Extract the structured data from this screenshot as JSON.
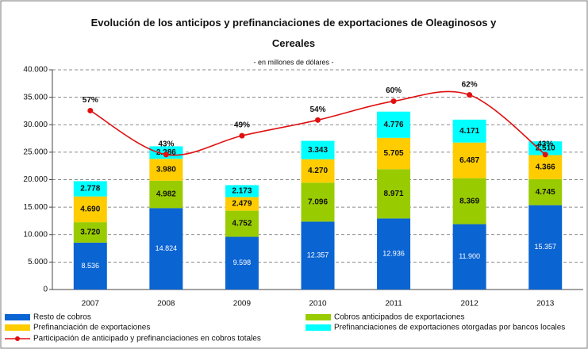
{
  "chart_data": {
    "type": "bar",
    "stacked": true,
    "title": "Evolución de los anticipos y prefinanciaciones de exportaciones de Oleaginosos y Cereales",
    "subtitle": "- en millones de dólares -",
    "categories": [
      "2007",
      "2008",
      "2009",
      "2010",
      "2011",
      "2012",
      "2013"
    ],
    "ylim": [
      0,
      40000
    ],
    "yticks": [
      0,
      {
        "value": 5000,
        "label": "5.000"
      },
      {
        "value": 10000,
        "label": "10.000"
      },
      {
        "value": 15000,
        "label": "15.000"
      },
      {
        "value": 20000,
        "label": "20.000"
      },
      {
        "value": 25000,
        "label": "25.000"
      },
      {
        "value": 30000,
        "label": "30.000"
      },
      {
        "value": 35000,
        "label": "35.000"
      },
      {
        "value": 40000,
        "label": "40.000"
      }
    ],
    "y2lim": [
      0,
      70
    ],
    "grid": true,
    "series": [
      {
        "name": "Resto de cobros",
        "color": "#0a64d2",
        "values": [
          8536,
          14824,
          9598,
          12357,
          12936,
          11900,
          15357
        ],
        "value_labels": [
          "8.536",
          "14.824",
          "9.598",
          "12.357",
          "12.936",
          "11.900",
          "15.357"
        ]
      },
      {
        "name": "Cobros anticipados de exportaciones",
        "color": "#99cc00",
        "values": [
          3720,
          4982,
          4752,
          7096,
          8971,
          8369,
          4745
        ],
        "value_labels": [
          "3.720",
          "4.982",
          "4.752",
          "7.096",
          "8.971",
          "8.369",
          "4.745"
        ]
      },
      {
        "name": "Prefinanciación de exportaciones",
        "color": "#ffcc00",
        "values": [
          4690,
          3980,
          2479,
          4270,
          5705,
          6487,
          4366
        ],
        "value_labels": [
          "4.690",
          "3.980",
          "2.479",
          "4.270",
          "5.705",
          "6.487",
          "4.366"
        ]
      },
      {
        "name": "Prefinanciaciones de exportaciones otorgadas por bancos locales",
        "color": "#00ffff",
        "values": [
          2778,
          2286,
          2173,
          3343,
          4776,
          4171,
          2510
        ],
        "value_labels": [
          "2.778",
          "2.286",
          "2.173",
          "3.343",
          "4.776",
          "4.171",
          "2.510"
        ]
      },
      {
        "name": "Participación de anticipado y prefinanciaciones en cobros totales",
        "type": "line",
        "axis": "y2",
        "color": "#e01010",
        "values": [
          57,
          43,
          49,
          54,
          60,
          62,
          43
        ],
        "value_labels": [
          "57%",
          "43%",
          "49%",
          "54%",
          "60%",
          "62%",
          "43%"
        ]
      }
    ]
  }
}
